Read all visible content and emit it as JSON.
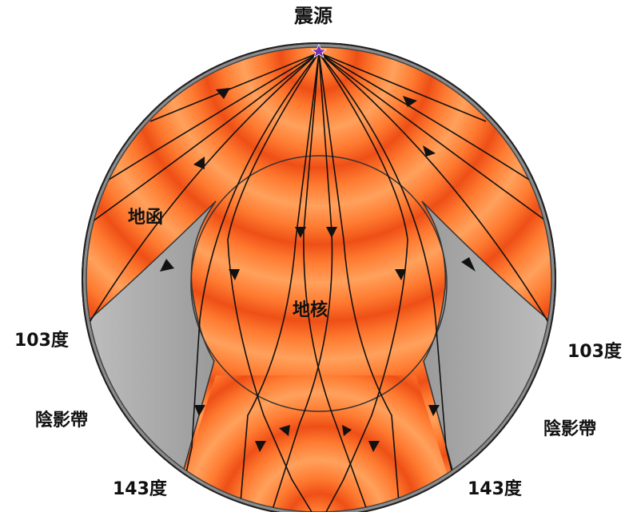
{
  "labels": {
    "source": "震源",
    "mantle": "地函",
    "core": "地核",
    "angle_103_left": "103度",
    "angle_103_right": "103度",
    "shadow_left": "陰影帶",
    "shadow_right": "陰影帶",
    "angle_143_left": "143度",
    "angle_143_right": "143度"
  },
  "colors": {
    "shadow_zone": "#a8a8a8",
    "wave_orange": "#f05a1e",
    "wave_light": "#ffa05a",
    "earth_rim": "#888888",
    "outline": "#111111",
    "source_marker": "#7a2fb0"
  }
}
